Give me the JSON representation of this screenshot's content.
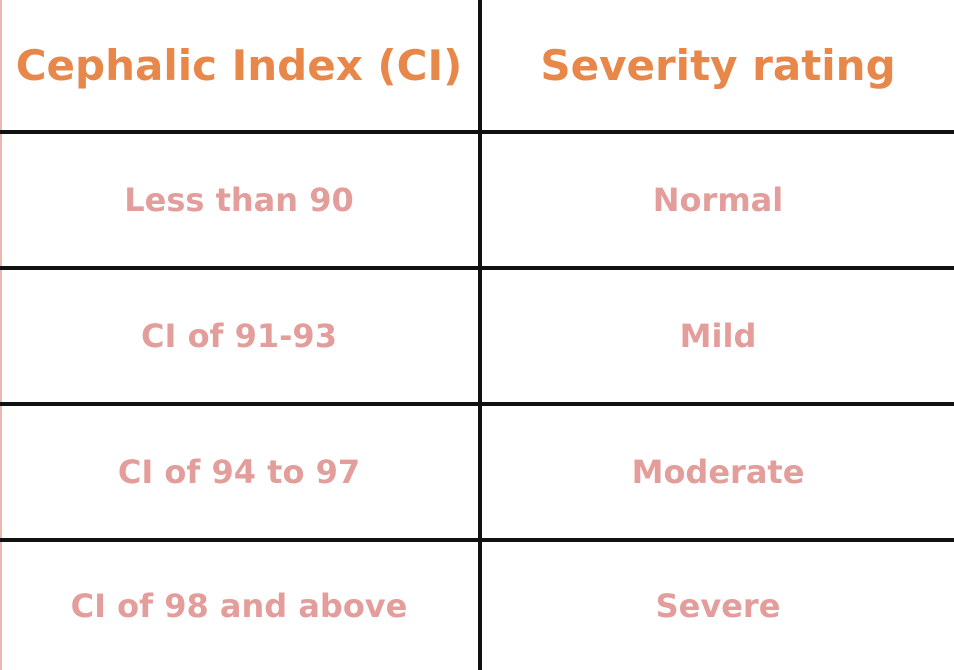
{
  "table": {
    "header": [
      "Cephalic Index (CI)",
      "Severity rating"
    ],
    "rows": [
      [
        "Less than 90",
        "Normal"
      ],
      [
        "CI of 91-93",
        "Mild"
      ],
      [
        "CI of 94 to 97",
        "Moderate"
      ],
      [
        "CI of 98 and above",
        "Severe"
      ]
    ]
  }
}
